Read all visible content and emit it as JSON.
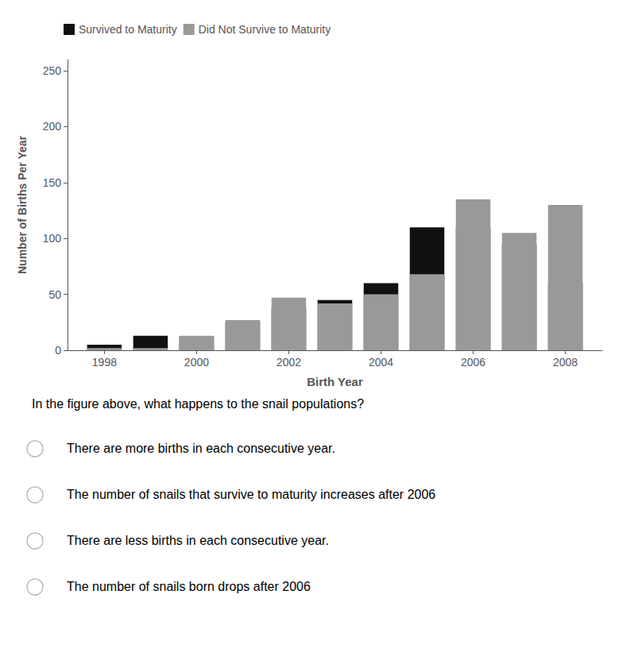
{
  "chart_data": {
    "type": "bar",
    "stacked": true,
    "xlabel": "Birth Year",
    "ylabel": "Number of Births Per Year",
    "x": [
      1998,
      1999,
      2000,
      2001,
      2002,
      2003,
      2004,
      2005,
      2006,
      2007,
      2008
    ],
    "series": [
      {
        "name": "Survived to Maturity",
        "color": "#111111",
        "values": [
          5,
          13,
          12,
          25,
          38,
          45,
          60,
          110,
          110,
          95,
          60
        ]
      },
      {
        "name": "Did Not Survive to Maturity",
        "color": "#999999",
        "values": [
          2,
          2,
          13,
          27,
          47,
          42,
          50,
          68,
          135,
          105,
          130
        ]
      }
    ],
    "xlim": [
      1997.2,
      2008.8
    ],
    "xticks": [
      1998,
      2000,
      2002,
      2004,
      2006,
      2008
    ],
    "ylim": [
      0,
      260
    ],
    "yticks": [
      0,
      50,
      100,
      150,
      200,
      250
    ],
    "grid": false,
    "legend": "upper left",
    "annotations": [
      "In the figure above, what happens to the snail populations?",
      "There are more births in each consecutive year.",
      "The number of snails that survive to maturity increases after 2006",
      "There are less births in each consecutive year.",
      "The number of snails born drops after 2006"
    ]
  }
}
